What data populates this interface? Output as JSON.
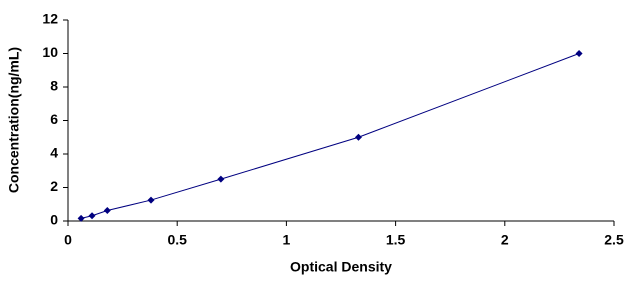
{
  "chart_data": {
    "type": "scatter",
    "x_label": "Optical Density",
    "y_label": "Concentration(ng/mL)",
    "x": [
      0.06,
      0.11,
      0.18,
      0.38,
      0.7,
      1.33,
      2.34
    ],
    "y": [
      0.156,
      0.312,
      0.625,
      1.25,
      2.5,
      5,
      10
    ],
    "color": "#000080",
    "line": true,
    "xlim": [
      0,
      2.5
    ],
    "xticks": [
      0,
      0.5,
      1,
      1.5,
      2,
      2.5
    ],
    "ylim": [
      0,
      12
    ],
    "yticks": [
      0,
      2,
      4,
      6,
      8,
      10,
      12
    ],
    "grid": false
  }
}
